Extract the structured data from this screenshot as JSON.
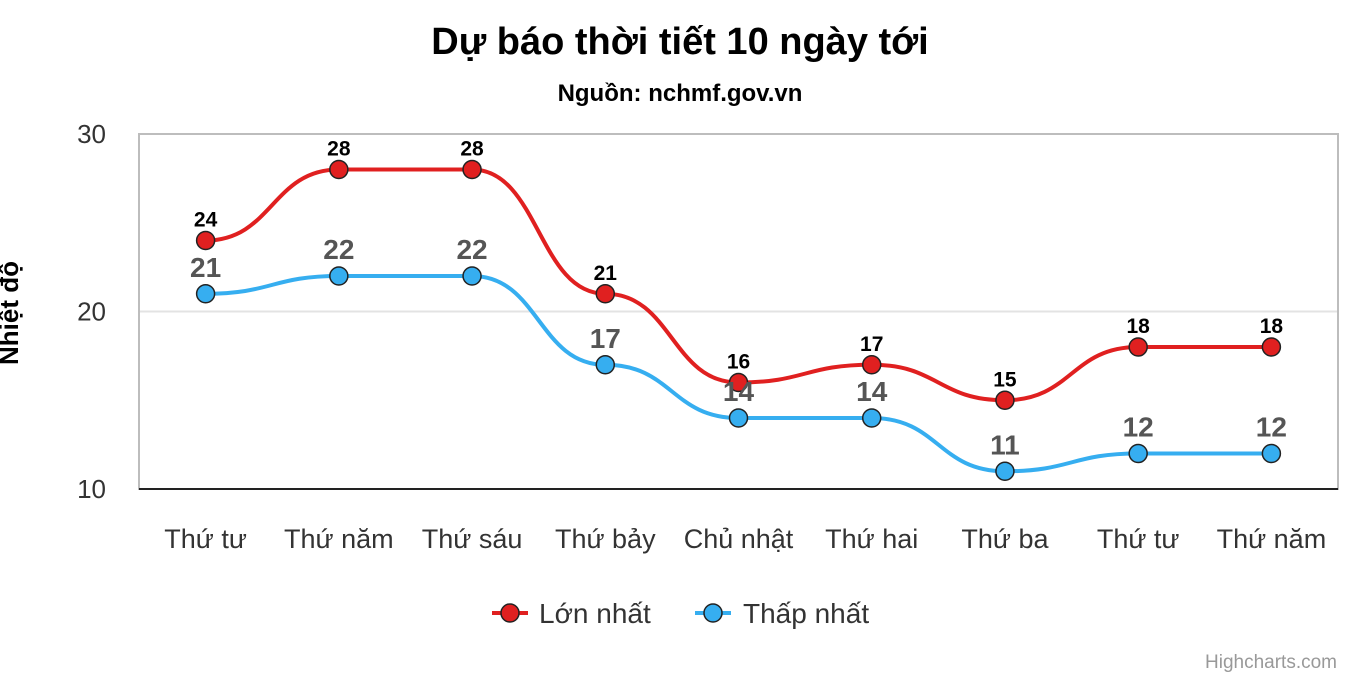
{
  "chart_data": {
    "type": "line",
    "title": "Dự báo thời tiết 10 ngày tới",
    "subtitle": "Nguồn: nchmf.gov.vn",
    "ylabel": "Nhiệt độ",
    "xlabel": "",
    "ylim": [
      10,
      30
    ],
    "yticks": [
      10,
      20,
      30
    ],
    "grid": true,
    "legend": "bottom-center",
    "categories": [
      "Thứ tư",
      "Thứ năm",
      "Thứ sáu",
      "Thứ bảy",
      "Chủ nhật",
      "Thứ hai",
      "Thứ ba",
      "Thứ tư",
      "Thứ năm"
    ],
    "series": [
      {
        "name": "Lớn nhất",
        "color": "#e02020",
        "values": [
          24,
          28,
          28,
          21,
          16,
          17,
          15,
          18,
          18
        ]
      },
      {
        "name": "Thấp nhất",
        "color": "#36aef0",
        "values": [
          21,
          22,
          22,
          17,
          14,
          14,
          11,
          12,
          12
        ]
      }
    ],
    "credits": "Highcharts.com"
  }
}
